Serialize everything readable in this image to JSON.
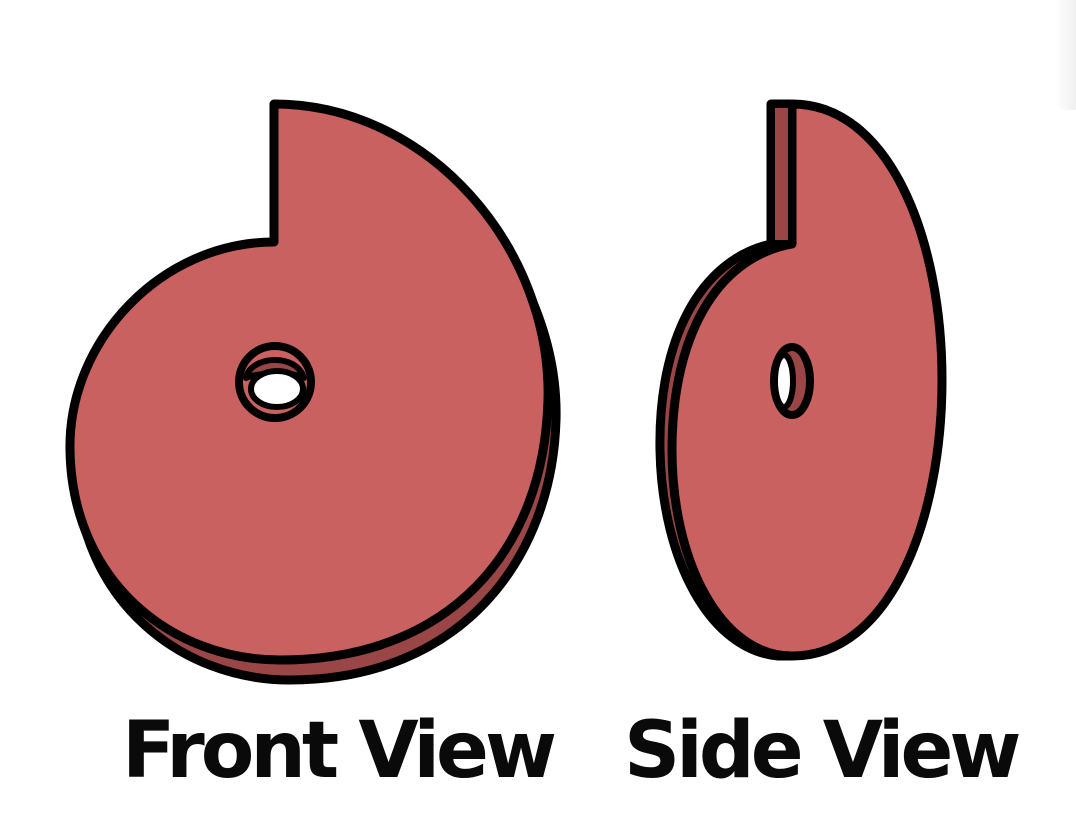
{
  "colors": {
    "face": "#c86160",
    "edge": "#9a4646",
    "outline": "#000000",
    "hole": "#ffffff",
    "caption": "#0a0a0a"
  },
  "captions": {
    "front": "Front View",
    "side": "Side View"
  }
}
